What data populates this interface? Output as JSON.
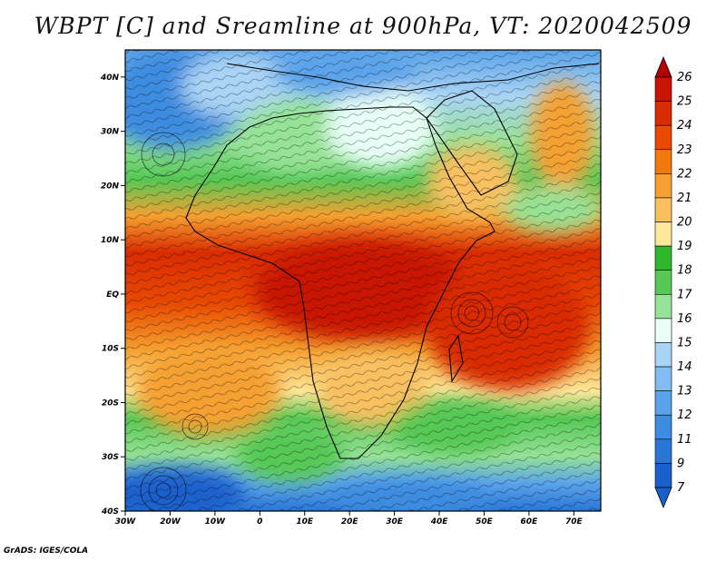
{
  "title": "WBPT [C] and Sreamline at 900hPa, VT: 2020042509",
  "credit": "GrADS: IGES/COLA",
  "axes": {
    "lon_ticks": [
      "30W",
      "20W",
      "10W",
      "0",
      "10E",
      "20E",
      "30E",
      "40E",
      "50E",
      "60E",
      "70E"
    ],
    "lat_ticks": [
      "40N",
      "30N",
      "20N",
      "10N",
      "EQ",
      "10S",
      "20S",
      "30S",
      "40S"
    ],
    "lon_range_deg": [
      -30,
      76
    ],
    "lat_range_deg": [
      -40,
      45
    ]
  },
  "colorbar": {
    "levels": [
      "26",
      "25",
      "24",
      "23",
      "22",
      "21",
      "20",
      "19",
      "18",
      "17",
      "16",
      "15",
      "14",
      "13",
      "12",
      "11",
      "9",
      "7"
    ],
    "colors": [
      "#b40000",
      "#c81400",
      "#d92c00",
      "#e84a00",
      "#f07a10",
      "#f5a030",
      "#f8c060",
      "#fde79a",
      "#2eb82e",
      "#55c855",
      "#96e296",
      "#e8fff8",
      "#aad4f5",
      "#82bcf0",
      "#5aa3ea",
      "#3c8ce0",
      "#2a76d6",
      "#1a60cc"
    ]
  },
  "legend_colors": {
    "frame": "#000000",
    "hot": "#d92c00",
    "warm": "#f8c060",
    "mid": "#55c855",
    "cool": "#82bcf0",
    "cold": "#2a76d6"
  }
}
